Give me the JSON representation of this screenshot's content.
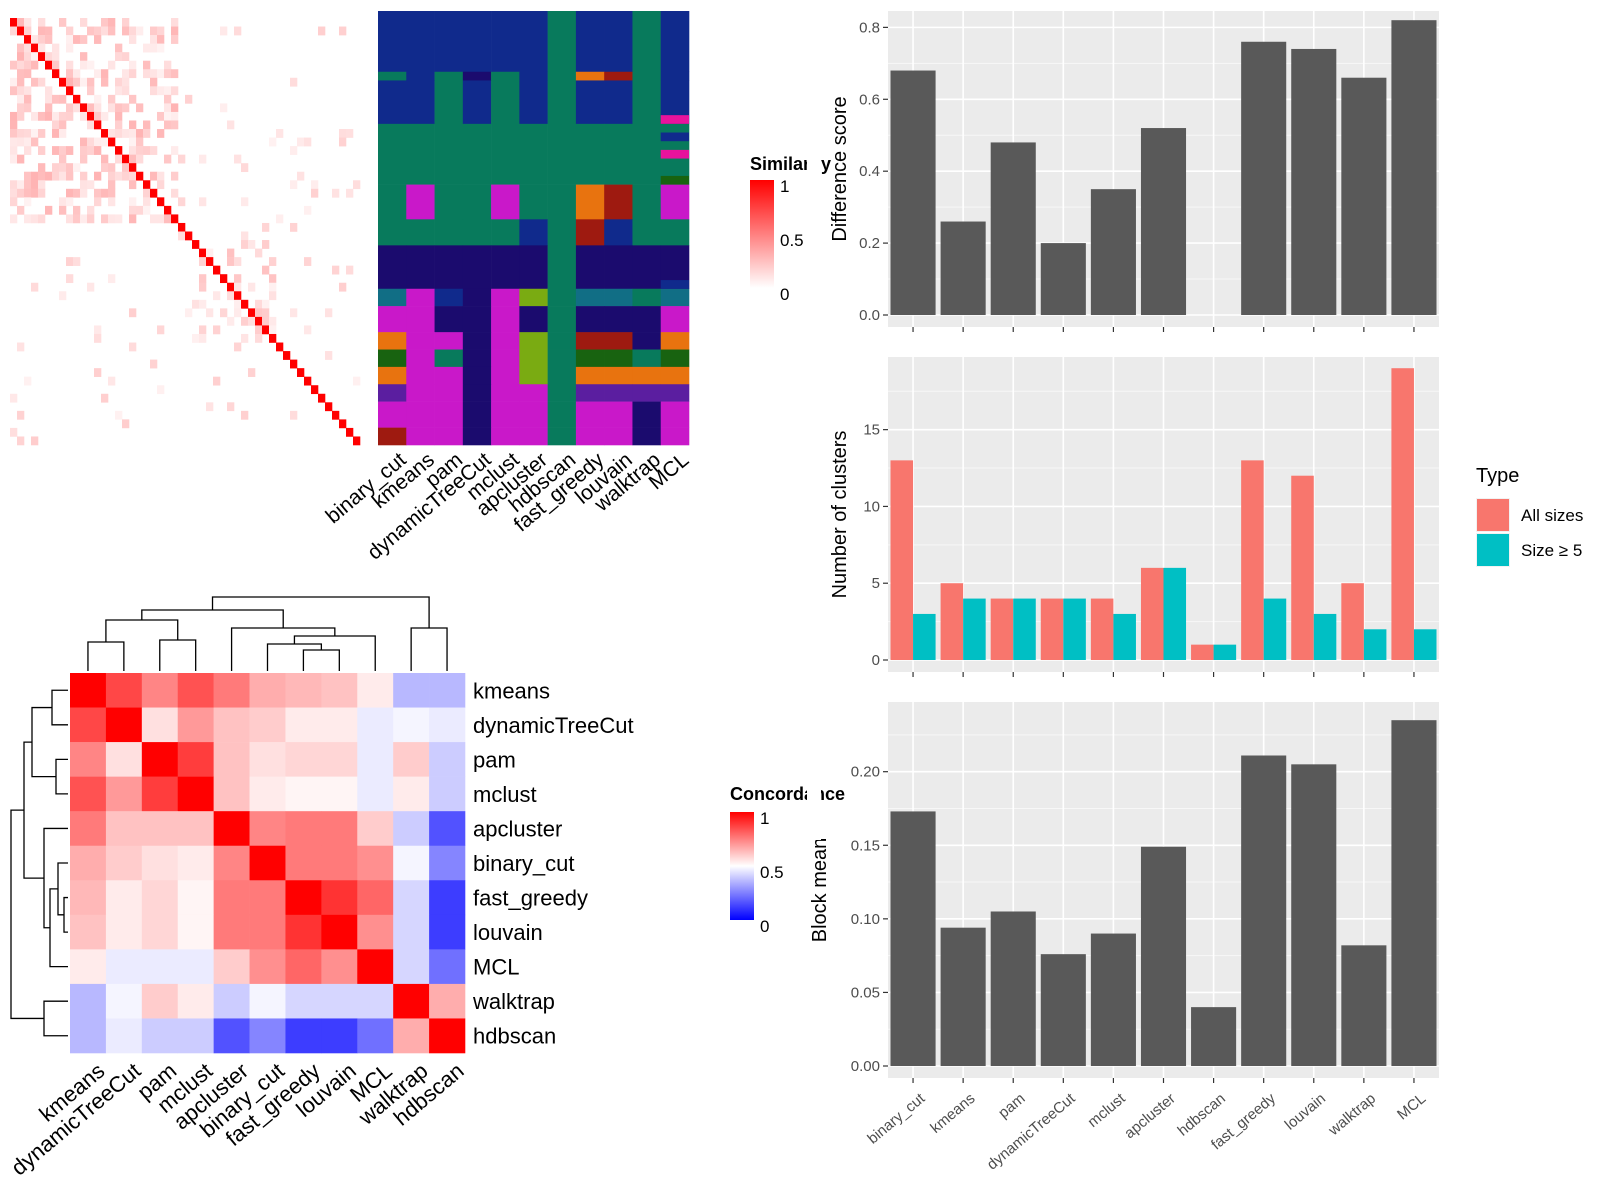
{
  "similarity_heatmap": {
    "legend_title": "Similarity",
    "legend_ticks": [
      "1",
      "0.5",
      "0"
    ],
    "colors": {
      "high": "#ff0000",
      "low": "#ffffff"
    }
  },
  "membership_matrix": {
    "methods": [
      "binary_cut",
      "kmeans",
      "pam",
      "dynamicTreeCut",
      "mclust",
      "apcluster",
      "hdbscan",
      "fast_greedy",
      "louvain",
      "walktrap",
      "MCL"
    ]
  },
  "concordance_heatmap": {
    "legend_title": "Concordance",
    "legend_ticks": [
      "1",
      "0.5",
      "0"
    ],
    "row_labels": [
      "kmeans",
      "dynamicTreeCut",
      "pam",
      "mclust",
      "apcluster",
      "binary_cut",
      "fast_greedy",
      "louvain",
      "MCL",
      "walktrap",
      "hdbscan"
    ],
    "col_labels": [
      "kmeans",
      "dynamicTreeCut",
      "pam",
      "mclust",
      "apcluster",
      "binary_cut",
      "fast_greedy",
      "louvain",
      "MCL",
      "walktrap",
      "hdbscan"
    ],
    "colors": {
      "high": "#ff0000",
      "mid": "#ffffff",
      "low": "#0000ff"
    }
  },
  "chart_data": [
    {
      "type": "bar",
      "ylabel": "Difference score",
      "categories": [
        "binary_cut",
        "kmeans",
        "pam",
        "dynamicTreeCut",
        "mclust",
        "apcluster",
        "hdbscan",
        "fast_greedy",
        "louvain",
        "walktrap",
        "MCL"
      ],
      "values": [
        0.68,
        0.26,
        0.48,
        0.2,
        0.35,
        0.52,
        0,
        0.76,
        0.74,
        0.66,
        0.82
      ],
      "ylim": [
        0,
        0.84
      ],
      "yticks": [
        "0.0",
        "0.2",
        "0.4",
        "0.6",
        "0.8"
      ],
      "bar_color": "#595959"
    },
    {
      "type": "bar",
      "ylabel": "Number of clusters",
      "categories": [
        "binary_cut",
        "kmeans",
        "pam",
        "dynamicTreeCut",
        "mclust",
        "apcluster",
        "hdbscan",
        "fast_greedy",
        "louvain",
        "walktrap",
        "MCL"
      ],
      "series": [
        {
          "name": "All sizes",
          "color": "#f8766d",
          "values": [
            13,
            5,
            4,
            4,
            4,
            6,
            1,
            13,
            12,
            5,
            19
          ]
        },
        {
          "name": "Size ≥ 5",
          "color": "#00bfc4",
          "values": [
            3,
            4,
            4,
            4,
            3,
            6,
            1,
            4,
            3,
            2,
            2
          ]
        }
      ],
      "ylim": [
        0,
        19.6
      ],
      "yticks": [
        "0",
        "5",
        "10",
        "15"
      ],
      "legend_title": "Type",
      "legend_position": "right"
    },
    {
      "type": "bar",
      "ylabel": "Block mean",
      "categories": [
        "binary_cut",
        "kmeans",
        "pam",
        "dynamicTreeCut",
        "mclust",
        "apcluster",
        "hdbscan",
        "fast_greedy",
        "louvain",
        "walktrap",
        "MCL"
      ],
      "values": [
        0.173,
        0.094,
        0.105,
        0.076,
        0.09,
        0.149,
        0.04,
        0.211,
        0.205,
        0.082,
        0.235
      ],
      "ylim": [
        0,
        0.246
      ],
      "yticks": [
        "0.00",
        "0.05",
        "0.10",
        "0.15",
        "0.20"
      ],
      "bar_color": "#595959"
    }
  ]
}
